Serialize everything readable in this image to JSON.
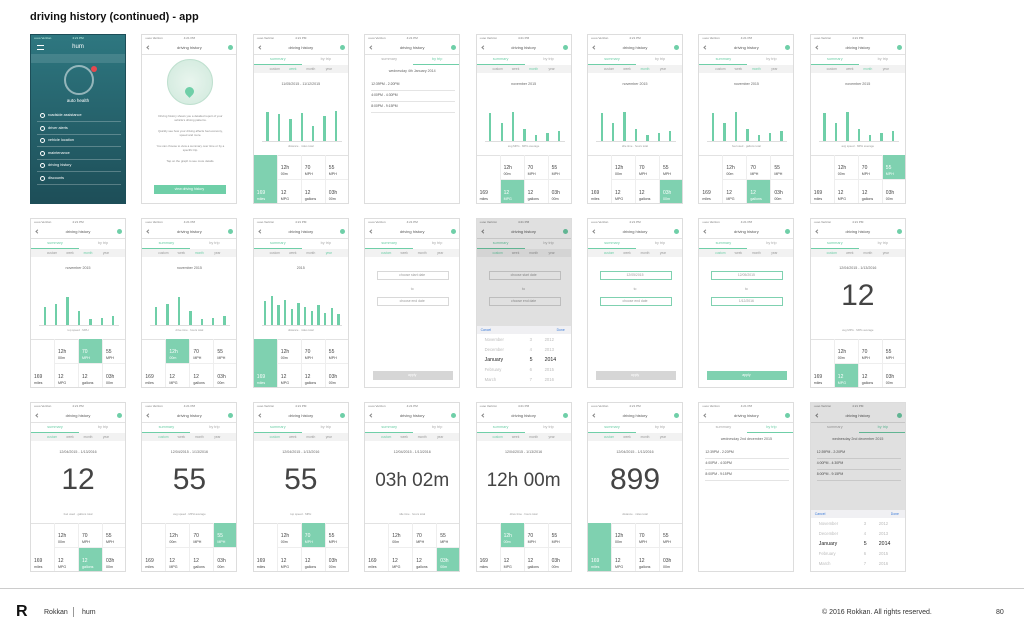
{
  "title": "driving history (continued) - app",
  "status": {
    "carrier": "•••oo Verizon",
    "time": "4:21 PM"
  },
  "tabs": [
    "summary",
    "by trip"
  ],
  "subtabs": [
    "custom",
    "week",
    "month",
    "year"
  ],
  "stats": [
    {
      "value": "169",
      "unit": "miles"
    },
    {
      "value": "12h",
      "unit": "00m"
    },
    {
      "value": "70",
      "unit": "MPH"
    },
    {
      "value": "55",
      "unit": "MPH"
    },
    {
      "value": "12",
      "unit": "MPG"
    },
    {
      "value": "12",
      "unit": "gallons"
    },
    {
      "value": "03h",
      "unit": "00m"
    }
  ],
  "to": "to",
  "apply": "apply",
  "picker": {
    "cancel": "Cancel",
    "done": "Done",
    "months": [
      "November",
      "December",
      "January",
      "February",
      "March"
    ],
    "days": [
      "3",
      "4",
      "5",
      "6",
      "7"
    ],
    "years": [
      "2012",
      "2013",
      "2014",
      "2015",
      "2016"
    ]
  },
  "screens": [
    {
      "home": {
        "brand": "hum",
        "label": "auto health",
        "menu": [
          "roadside assistance",
          "driver alerts",
          "vehicle location",
          "maintenance",
          "driving history",
          "discounts"
        ]
      }
    },
    {
      "title": "driving history",
      "intro": {
        "paragraphs": [
          "Driving history shows you a detailed report of your vehicle's driving patterns.",
          "Quickly see how your driving affects fuel economy, speed and more.",
          "You can choose to view a summary over time or by a specific trip.",
          "Tap on the graph to see more details."
        ],
        "button": "view driving history"
      }
    },
    {
      "title": "driving history",
      "active_tab": 0,
      "active_subtab": 1,
      "heading": "11/05/2015 - 11/12/2015",
      "bars": [
        72,
        68,
        55,
        70,
        38,
        62,
        76
      ],
      "caption": "distance · miles total",
      "selected": 0
    },
    {
      "title": "driving history",
      "active_tab": 1,
      "heading": "wednesday 4th January 2014",
      "trips": [
        "12:39PM - 2:20PM",
        "4:00PM - 4:30PM",
        "8:00PM - 9:15PM"
      ]
    },
    {
      "title": "driving history",
      "active_tab": 0,
      "active_subtab": 2,
      "heading": "november 2015",
      "bars": [
        70,
        45,
        72,
        30,
        14,
        20,
        26
      ],
      "caption": "avg MPG · MPG average",
      "selected": 4
    },
    {
      "title": "driving history",
      "active_tab": 0,
      "active_subtab": 2,
      "heading": "november 2015",
      "bars": [
        70,
        45,
        72,
        30,
        14,
        20,
        26
      ],
      "caption": "idle time · hours total",
      "selected": 6
    },
    {
      "title": "driving history",
      "active_tab": 0,
      "active_subtab": 2,
      "heading": "november 2015",
      "bars": [
        70,
        45,
        72,
        30,
        14,
        20,
        26
      ],
      "caption": "fuel used · gallons total",
      "selected": 5
    },
    {
      "title": "driving history",
      "active_tab": 0,
      "active_subtab": 2,
      "heading": "november 2015",
      "bars": [
        70,
        45,
        72,
        30,
        14,
        20,
        26
      ],
      "caption": "avg speed · MPH average",
      "selected": 3
    },
    {
      "title": "driving history",
      "active_tab": 0,
      "active_subtab": 2,
      "heading": "november 2015",
      "bars": [
        45,
        52,
        70,
        35,
        15,
        18,
        22
      ],
      "caption": "top speed · MPH",
      "selected": 2
    },
    {
      "title": "driving history",
      "active_tab": 0,
      "active_subtab": 2,
      "heading": "november 2015",
      "bars": [
        45,
        52,
        70,
        35,
        15,
        18,
        22
      ],
      "caption": "drive time · hours total",
      "selected": 1
    },
    {
      "title": "driving history",
      "active_tab": 0,
      "active_subtab": 3,
      "heading": "2015",
      "bars": [
        60,
        72,
        50,
        62,
        40,
        55,
        45,
        35,
        50,
        30,
        42,
        28
      ],
      "caption": "distance · miles total",
      "selected": 0
    },
    {
      "title": "driving history",
      "active_tab": 0,
      "active_subtab": 0,
      "fields": [
        "choose start date",
        "choose end date"
      ],
      "field_color": "#d8d8d8",
      "button_color": "#d6d6d6"
    },
    {
      "title": "driving history",
      "active_tab": 0,
      "active_subtab": 0,
      "fields": [
        "choose start date",
        "choose end date"
      ],
      "field_color": "#d8d8d8",
      "button_color": "#d6d6d6",
      "show_picker": true
    },
    {
      "title": "driving history",
      "active_tab": 0,
      "active_subtab": 0,
      "fields": [
        "12/05/2015",
        "choose end date"
      ],
      "field_color": "#7fd1b0",
      "button_color": "#d6d6d6"
    },
    {
      "title": "driving history",
      "active_tab": 0,
      "active_subtab": 0,
      "fields": [
        "12/05/2015",
        "1/12/2016"
      ],
      "field_color": "#7fd1b0",
      "button_color": "#7fd1b0"
    },
    {
      "title": "driving history",
      "active_tab": 0,
      "active_subtab": 0,
      "heading": "12/04/2015 - 1/13/2016",
      "big": "12",
      "caption": "avg MPG · MPG average",
      "selected": 4
    },
    {
      "title": "driving history",
      "active_tab": 0,
      "active_subtab": 0,
      "heading": "12/04/2015 - 1/13/2016",
      "big": "12",
      "caption": "fuel used · gallons total",
      "selected": 5
    },
    {
      "title": "driving history",
      "active_tab": 0,
      "active_subtab": 0,
      "heading": "12/04/2015 - 1/13/2016",
      "big": "55",
      "caption": "avg speed · MPH average",
      "selected": 3
    },
    {
      "title": "driving history",
      "active_tab": 0,
      "active_subtab": 0,
      "heading": "12/04/2015 - 1/13/2016",
      "big": "55",
      "caption": "top speed · MPH",
      "selected": 2
    },
    {
      "title": "driving history",
      "active_tab": 0,
      "active_subtab": 0,
      "heading": "12/04/2015 - 1/13/2016",
      "big": "03h 02m",
      "caption": "idle time · hours total",
      "selected": 6
    },
    {
      "title": "driving history",
      "active_tab": 0,
      "active_subtab": 0,
      "heading": "12/04/2015 - 1/13/2016",
      "big": "12h 00m",
      "caption": "drive time · hours total",
      "selected": 1
    },
    {
      "title": "driving history",
      "active_tab": 0,
      "active_subtab": 0,
      "heading": "12/04/2015 - 1/13/2016",
      "big": "899",
      "caption": "distance · miles total",
      "selected": 0
    },
    {
      "title": "driving history",
      "active_tab": 1,
      "heading": "wednesday 2nd december 2015",
      "trips": [
        "12:39PM - 2:20PM",
        "4:00PM - 4:30PM",
        "8:00PM - 9:15PM"
      ]
    },
    {
      "title": "driving history",
      "active_tab": 1,
      "heading": "wednesday 2nd december 2015",
      "trips": [
        "12:39PM - 2:20PM",
        "4:00PM - 4:30PM",
        "8:00PM - 9:15PM"
      ],
      "show_picker": true
    }
  ],
  "footer": {
    "logo": "R",
    "brand": "Rokkan",
    "client": "hum",
    "copyright": "© 2016 Rokkan. All rights reserved.",
    "page": "80"
  }
}
